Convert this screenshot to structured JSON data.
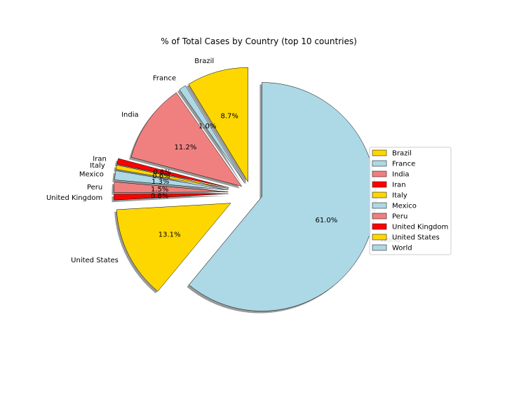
{
  "chart_data": {
    "type": "pie",
    "title": "% of Total Cases by Country (top 10 countries)",
    "labels": [
      "Brazil",
      "France",
      "India",
      "Iran",
      "Italy",
      "Mexico",
      "Peru",
      "United Kingdom",
      "United States",
      "World"
    ],
    "values": [
      8.7,
      1.0,
      11.2,
      0.8,
      0.6,
      1.3,
      1.5,
      0.8,
      13.1,
      61.0
    ],
    "pct_labels": [
      "8.7%",
      "1.0%",
      "11.2%",
      "0.8%",
      "0.6%",
      "1.3%",
      "1.5%",
      "0.8%",
      "13.1%",
      "61.0%"
    ],
    "colors": [
      "#ffd700",
      "#add8e6",
      "#f08080",
      "#ff0000",
      "#ffd700",
      "#add8e6",
      "#f08080",
      "#ff0000",
      "#ffd700",
      "#add8e6"
    ],
    "explode": [
      0.1,
      0.1,
      0.1,
      0.2,
      0.2,
      0.2,
      0.2,
      0.2,
      0.2,
      0.1
    ],
    "start_angle": 90,
    "shadow": true,
    "legend": {
      "location": "right",
      "entries": [
        "Brazil",
        "France",
        "India",
        "Iran",
        "Italy",
        "Mexico",
        "Peru",
        "United Kingdom",
        "United States",
        "World"
      ]
    }
  }
}
